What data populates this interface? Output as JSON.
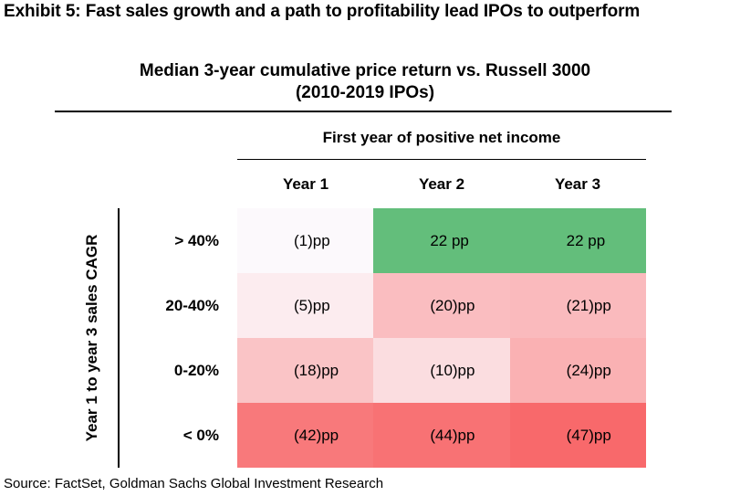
{
  "exhibit_title": "Exhibit 5: Fast sales growth and a path to profitability lead IPOs to outperform",
  "chart_data": {
    "type": "heatmap",
    "title": "Median 3-year cumulative price return vs. Russell 3000",
    "subtitle": "(2010-2019 IPOs)",
    "column_group_label": "First year of positive net income",
    "row_axis_label": "Year 1 to year 3 sales CAGR",
    "columns": [
      "Year 1",
      "Year 2",
      "Year 3"
    ],
    "rows": [
      "> 40%",
      "20-40%",
      "0-20%",
      "< 0%"
    ],
    "unit": "pp",
    "values": [
      [
        -1,
        22,
        22
      ],
      [
        -5,
        -20,
        -21
      ],
      [
        -18,
        -10,
        -24
      ],
      [
        -42,
        -44,
        -47
      ]
    ],
    "labels": [
      [
        "(1)pp",
        "22 pp",
        "22 pp"
      ],
      [
        "(5)pp",
        "(20)pp",
        "(21)pp"
      ],
      [
        "(18)pp",
        "(10)pp",
        "(24)pp"
      ],
      [
        "(42)pp",
        "(44)pp",
        "(47)pp"
      ]
    ],
    "colors": {
      "positive": "#63be7b",
      "negative": "#f8696b",
      "neutral": "#fcfcff"
    }
  },
  "source": "Source: FactSet, Goldman Sachs Global Investment Research"
}
